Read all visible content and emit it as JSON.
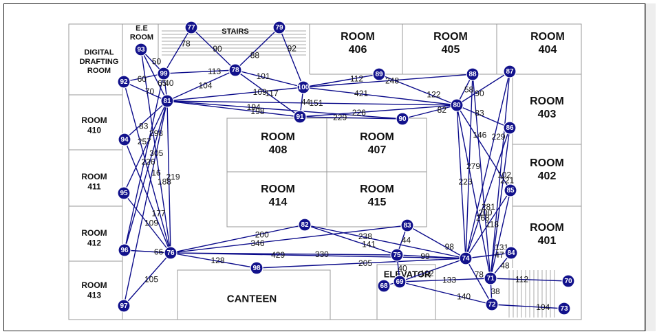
{
  "rooms": [
    {
      "id": "ee",
      "lines": [
        "E.E",
        "ROOM"
      ],
      "size": 11
    },
    {
      "id": "stairs",
      "lines": [
        "STAIRS"
      ],
      "size": 11
    },
    {
      "id": "digital",
      "lines": [
        "DIGITAL",
        "DRAFTING",
        "ROOM"
      ],
      "size": 11
    },
    {
      "id": "r406",
      "lines": [
        "ROOM",
        "406"
      ],
      "size": 16
    },
    {
      "id": "r405",
      "lines": [
        "ROOM",
        "405"
      ],
      "size": 16
    },
    {
      "id": "r404",
      "lines": [
        "ROOM",
        "404"
      ],
      "size": 16
    },
    {
      "id": "r403",
      "lines": [
        "ROOM",
        "403"
      ],
      "size": 16
    },
    {
      "id": "r402",
      "lines": [
        "ROOM",
        "402"
      ],
      "size": 16
    },
    {
      "id": "r401",
      "lines": [
        "ROOM",
        "401"
      ],
      "size": 16
    },
    {
      "id": "r410",
      "lines": [
        "ROOM",
        "410"
      ],
      "size": 12
    },
    {
      "id": "r411",
      "lines": [
        "ROOM",
        "411"
      ],
      "size": 12
    },
    {
      "id": "r412",
      "lines": [
        "ROOM",
        "412"
      ],
      "size": 12
    },
    {
      "id": "r413",
      "lines": [
        "ROOM",
        "413"
      ],
      "size": 12
    },
    {
      "id": "r408",
      "lines": [
        "ROOM",
        "408"
      ],
      "size": 16
    },
    {
      "id": "r407",
      "lines": [
        "ROOM",
        "407"
      ],
      "size": 16
    },
    {
      "id": "r414",
      "lines": [
        "ROOM",
        "414"
      ],
      "size": 16
    },
    {
      "id": "r415",
      "lines": [
        "ROOM",
        "415"
      ],
      "size": 16
    },
    {
      "id": "elevator",
      "lines": [
        "ELEVATOR"
      ],
      "size": 13
    },
    {
      "id": "canteen",
      "lines": [
        "CANTEEN"
      ],
      "size": 15
    }
  ],
  "nodes": [
    "69",
    "70",
    "71",
    "72",
    "73",
    "74",
    "75",
    "76",
    "77",
    "78",
    "79",
    "80",
    "81",
    "82",
    "83",
    "84",
    "85",
    "86",
    "87",
    "88",
    "89",
    "90",
    "91",
    "92",
    "93",
    "94",
    "95",
    "96",
    "97",
    "98",
    "99",
    "100",
    "68"
  ],
  "edges": [
    {
      "a": "77",
      "b": "99",
      "w": "78"
    },
    {
      "a": "77",
      "b": "78",
      "w": "90"
    },
    {
      "a": "79",
      "b": "78",
      "w": "88"
    },
    {
      "a": "79",
      "b": "100",
      "w": "92"
    },
    {
      "a": "93",
      "b": "99",
      "w": "50"
    },
    {
      "a": "93",
      "b": "81",
      "w": "65"
    },
    {
      "a": "92",
      "b": "99",
      "w": "60"
    },
    {
      "a": "92",
      "b": "81",
      "w": "70"
    },
    {
      "a": "99",
      "b": "78",
      "w": "113"
    },
    {
      "a": "99",
      "b": "81",
      "w": "40"
    },
    {
      "a": "81",
      "b": "78",
      "w": "104"
    },
    {
      "a": "81",
      "b": "100",
      "w": "109"
    },
    {
      "a": "78",
      "b": "100",
      "w": "101"
    },
    {
      "a": "78",
      "b": "91",
      "w": "117"
    },
    {
      "a": "81",
      "b": "91",
      "w": "198"
    },
    {
      "a": "81",
      "b": "90",
      "w": "194"
    },
    {
      "a": "100",
      "b": "91",
      "w": "44"
    },
    {
      "a": "100",
      "b": "89",
      "w": "112"
    },
    {
      "a": "100",
      "b": "80",
      "w": "421"
    },
    {
      "a": "100",
      "b": "88",
      "w": "248"
    },
    {
      "a": "89",
      "b": "80",
      "w": "122"
    },
    {
      "a": "91",
      "b": "80",
      "w": "226"
    },
    {
      "a": "81",
      "b": "80",
      "w": "151"
    },
    {
      "a": "90",
      "b": "80",
      "w": "82"
    },
    {
      "a": "91",
      "b": "90",
      "w": "229"
    },
    {
      "a": "88",
      "b": "80",
      "w": "58"
    },
    {
      "a": "87",
      "b": "80",
      "w": "90"
    },
    {
      "a": "80",
      "b": "86",
      "w": "83"
    },
    {
      "a": "80",
      "b": "74",
      "w": "223"
    },
    {
      "a": "80",
      "b": "71",
      "w": "268"
    },
    {
      "a": "80",
      "b": "85",
      "w": "146"
    },
    {
      "a": "88",
      "b": "74",
      "w": "279"
    },
    {
      "a": "88",
      "b": "71",
      "w": "281"
    },
    {
      "a": "87",
      "b": "74",
      "w": "229"
    },
    {
      "a": "87",
      "b": "71",
      "w": "102"
    },
    {
      "a": "86",
      "b": "74",
      "w": "200"
    },
    {
      "a": "86",
      "b": "71",
      "w": "221"
    },
    {
      "a": "85",
      "b": "74",
      "w": "118"
    },
    {
      "a": "85",
      "b": "71",
      "w": "131"
    },
    {
      "a": "84",
      "b": "74",
      "w": "47"
    },
    {
      "a": "84",
      "b": "71",
      "w": "48"
    },
    {
      "a": "81",
      "b": "94",
      "w": "83"
    },
    {
      "a": "81",
      "b": "95",
      "w": "298"
    },
    {
      "a": "81",
      "b": "76",
      "w": "219"
    },
    {
      "a": "93",
      "b": "76",
      "w": "188"
    },
    {
      "a": "92",
      "b": "76",
      "w": "257"
    },
    {
      "a": "99",
      "b": "96",
      "w": "226"
    },
    {
      "a": "94",
      "b": "76",
      "w": "177"
    },
    {
      "a": "81",
      "b": "96",
      "w": "305"
    },
    {
      "a": "95",
      "b": "76",
      "w": "109"
    },
    {
      "a": "96",
      "b": "76",
      "w": "66"
    },
    {
      "a": "81",
      "b": "97",
      "w": "16"
    },
    {
      "a": "97",
      "b": "76",
      "w": "105"
    },
    {
      "a": "76",
      "b": "82",
      "w": "200"
    },
    {
      "a": "76",
      "b": "83",
      "w": "346"
    },
    {
      "a": "76",
      "b": "98",
      "w": "128"
    },
    {
      "a": "76",
      "b": "75",
      "w": "330"
    },
    {
      "a": "76",
      "b": "74",
      "w": "429"
    },
    {
      "a": "98",
      "b": "74",
      "w": "205"
    },
    {
      "a": "82",
      "b": "75",
      "w": "141"
    },
    {
      "a": "82",
      "b": "74",
      "w": "238"
    },
    {
      "a": "83",
      "b": "75",
      "w": "44"
    },
    {
      "a": "83",
      "b": "74",
      "w": "98"
    },
    {
      "a": "75",
      "b": "74",
      "w": "99"
    },
    {
      "a": "75",
      "b": "69",
      "w": "40"
    },
    {
      "a": "74",
      "b": "69",
      "w": "102"
    },
    {
      "a": "69",
      "b": "68",
      "w": "24"
    },
    {
      "a": "69",
      "b": "71",
      "w": "133"
    },
    {
      "a": "69",
      "b": "72",
      "w": "140"
    },
    {
      "a": "71",
      "b": "70",
      "w": "112"
    },
    {
      "a": "71",
      "b": "72",
      "w": "38"
    },
    {
      "a": "72",
      "b": "73",
      "w": "104"
    },
    {
      "a": "74",
      "b": "72",
      "w": "78"
    }
  ]
}
